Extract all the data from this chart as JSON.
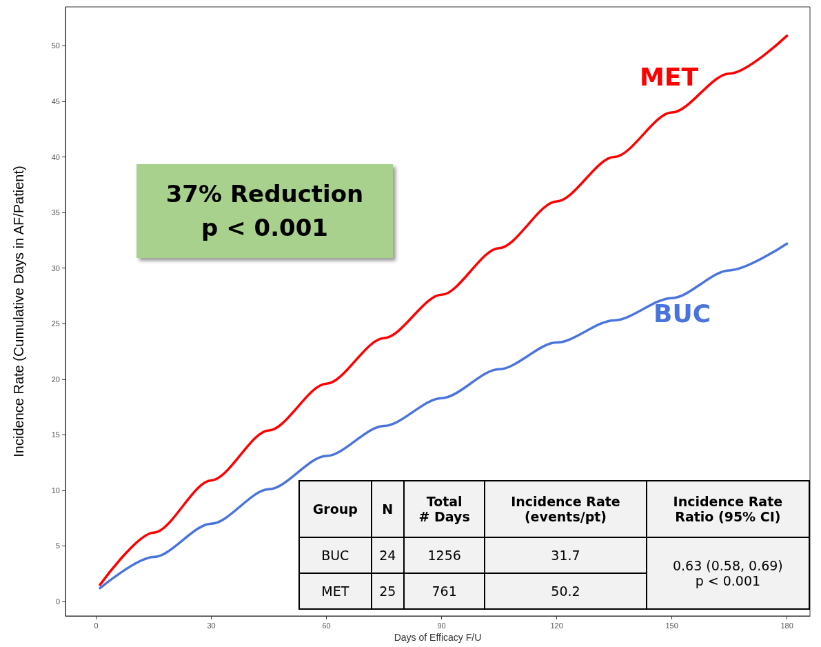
{
  "chart_data": {
    "type": "line",
    "xlabel": "Days of Efficacy F/U",
    "ylabel": "Incidence Rate (Cumulative Days in AF/Patient)",
    "x": [
      1,
      15,
      30,
      45,
      60,
      75,
      90,
      105,
      120,
      135,
      150,
      165,
      180
    ],
    "series": [
      {
        "name": "MET",
        "color": "#ff0000",
        "values": [
          1.5,
          6.2,
          10.9,
          15.4,
          19.6,
          23.7,
          27.6,
          31.8,
          36.0,
          40.0,
          44.0,
          47.5,
          50.9
        ]
      },
      {
        "name": "BUC",
        "color": "#4a74dd",
        "values": [
          1.2,
          4.0,
          7.0,
          10.1,
          13.1,
          15.8,
          18.3,
          20.9,
          23.3,
          25.3,
          27.3,
          29.8,
          32.2
        ]
      }
    ],
    "xlim": [
      -8,
      186
    ],
    "xticks": [
      0,
      30,
      60,
      90,
      120,
      150,
      180
    ],
    "ylim": [
      -1.3,
      53.5
    ],
    "yticks": [
      0,
      5,
      10,
      15,
      20,
      25,
      30,
      35,
      40,
      45,
      50
    ],
    "grid": false,
    "legend": false,
    "marker": "none",
    "line_style": "solid",
    "annotations": [
      "37% Reduction\np < 0.001",
      "Group",
      "N",
      "Total\n# Days",
      "Incidence Rate\n(events/pt)",
      "Incidence Rate\nRatio (95% CI)",
      "BUC",
      "24",
      "1256",
      "31.7",
      "0.63 (0.58, 0.69)\np < 0.001",
      "MET",
      "25",
      "761",
      "50.2"
    ]
  }
}
